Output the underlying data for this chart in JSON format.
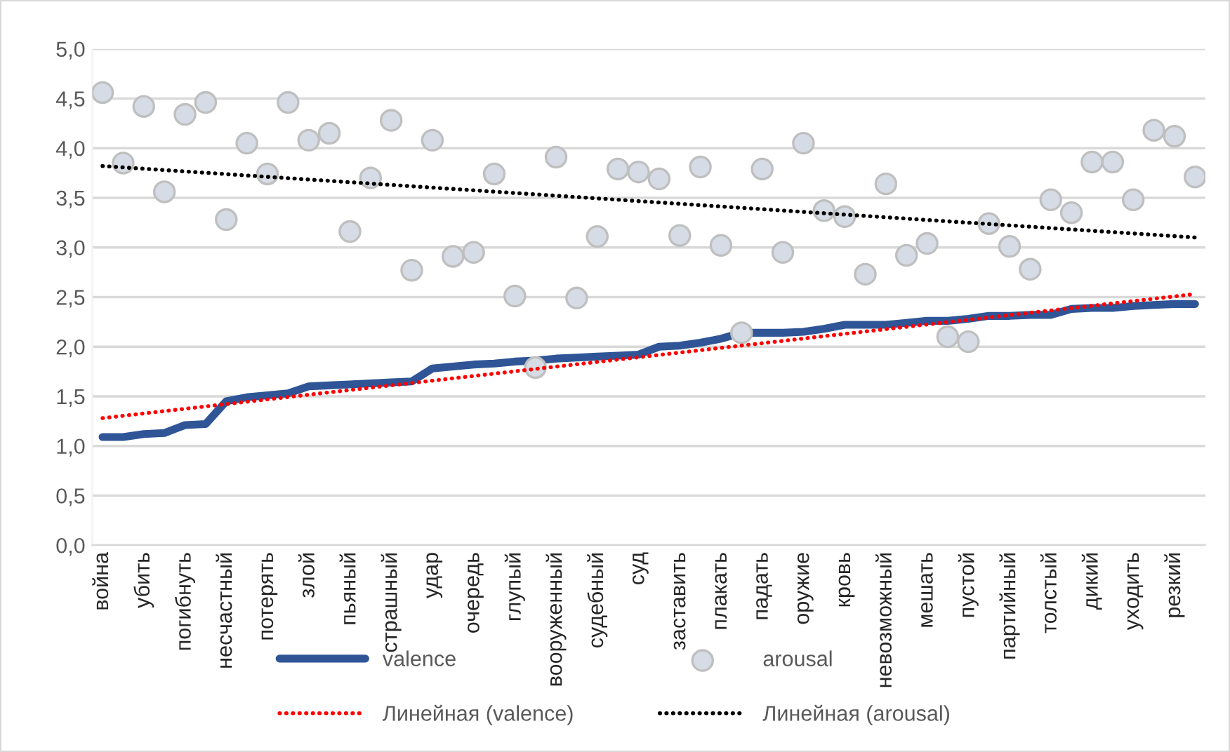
{
  "chart_data": {
    "type": "line",
    "categories": [
      "война",
      null,
      "убить",
      null,
      "погибнуть",
      null,
      "несчастный",
      null,
      "потерять",
      null,
      "злой",
      null,
      "пьяный",
      null,
      "страшный",
      null,
      "удар",
      null,
      "очередь",
      null,
      "глупый",
      null,
      "вооруженный",
      null,
      "судебный",
      null,
      "суд",
      null,
      "заставить",
      null,
      "плакать",
      null,
      "падать",
      null,
      "оружие",
      null,
      "кровь",
      null,
      "невозможный",
      null,
      "мешать",
      null,
      "пустой",
      null,
      "партийный",
      null,
      "толстый",
      null,
      "дикий",
      null,
      "уходить",
      null,
      "резкий",
      null
    ],
    "series": [
      {
        "name": "valence",
        "color": "#2f5597",
        "marker": "none",
        "values": [
          1.09,
          1.09,
          1.12,
          1.13,
          1.21,
          1.22,
          1.45,
          1.49,
          1.51,
          1.53,
          1.6,
          1.61,
          1.62,
          1.63,
          1.64,
          1.65,
          1.78,
          1.8,
          1.82,
          1.83,
          1.85,
          1.86,
          1.88,
          1.89,
          1.9,
          1.91,
          1.92,
          2.0,
          2.01,
          2.04,
          2.08,
          2.14,
          2.14,
          2.14,
          2.15,
          2.18,
          2.22,
          2.22,
          2.22,
          2.24,
          2.26,
          2.26,
          2.28,
          2.31,
          2.31,
          2.32,
          2.32,
          2.38,
          2.39,
          2.39,
          2.41,
          2.42,
          2.43,
          2.43
        ]
      },
      {
        "name": "arousal",
        "type": "scatter",
        "color": "#d6dce5",
        "marker": "circle",
        "values": [
          4.56,
          3.85,
          4.42,
          3.56,
          4.34,
          4.46,
          3.28,
          4.05,
          3.74,
          4.46,
          4.08,
          4.15,
          3.16,
          3.7,
          4.28,
          2.77,
          4.08,
          2.91,
          2.95,
          3.74,
          2.51,
          1.79,
          3.91,
          2.49,
          3.11,
          3.79,
          3.76,
          3.69,
          3.12,
          3.81,
          3.02,
          2.14,
          3.79,
          2.95,
          4.05,
          3.37,
          3.31,
          2.73,
          3.64,
          2.92,
          3.04,
          2.1,
          2.05,
          3.24,
          3.01,
          2.78,
          3.48,
          3.35,
          3.86,
          3.86,
          3.48,
          4.18,
          4.12,
          3.71
        ]
      },
      {
        "name": "Линейная (valence)",
        "type": "line",
        "color": "#ff0000",
        "line_style": "dotted",
        "values": [
          1.28,
          null,
          null,
          null,
          null,
          null,
          null,
          null,
          null,
          null,
          null,
          null,
          null,
          null,
          null,
          null,
          null,
          null,
          null,
          null,
          null,
          null,
          null,
          null,
          null,
          null,
          null,
          null,
          null,
          null,
          null,
          null,
          null,
          null,
          null,
          null,
          null,
          null,
          null,
          null,
          null,
          null,
          null,
          null,
          null,
          null,
          null,
          null,
          null,
          null,
          null,
          null,
          null,
          2.53
        ]
      },
      {
        "name": "Линейная (arousal)",
        "type": "line",
        "color": "#000000",
        "line_style": "dotted",
        "values": [
          3.82,
          null,
          null,
          null,
          null,
          null,
          null,
          null,
          null,
          null,
          null,
          null,
          null,
          null,
          null,
          null,
          null,
          null,
          null,
          null,
          null,
          null,
          null,
          null,
          null,
          null,
          null,
          null,
          null,
          null,
          null,
          null,
          null,
          null,
          null,
          null,
          null,
          null,
          null,
          null,
          null,
          null,
          null,
          null,
          null,
          null,
          null,
          null,
          null,
          null,
          null,
          null,
          null,
          3.1
        ]
      }
    ],
    "ylim": [
      0,
      5
    ],
    "yticks": [
      {
        "value": 0,
        "label": "0,0"
      },
      {
        "value": 0.5,
        "label": "0,5"
      },
      {
        "value": 1,
        "label": "1,0"
      },
      {
        "value": 1.5,
        "label": "1,5"
      },
      {
        "value": 2,
        "label": "2,0"
      },
      {
        "value": 2.5,
        "label": "2,5"
      },
      {
        "value": 3,
        "label": "3,0"
      },
      {
        "value": 3.5,
        "label": "3,5"
      },
      {
        "value": 4,
        "label": "4,0"
      },
      {
        "value": 4.5,
        "label": "4,5"
      },
      {
        "value": 5,
        "label": "5,0"
      }
    ],
    "grid": "y",
    "legend": "bottom"
  }
}
